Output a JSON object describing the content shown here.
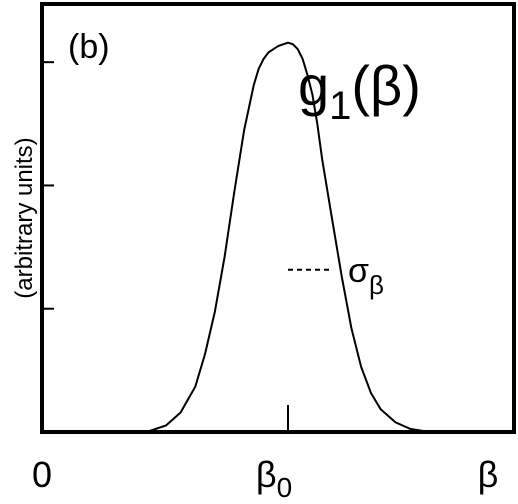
{
  "chart_data": {
    "type": "line",
    "panel_label": "(b)",
    "title": "g",
    "title_subscript": "1",
    "title_argument": "(β)",
    "ylabel": "(arbitrary units)",
    "xlabel": "β",
    "x_ticks": [
      {
        "label": "0",
        "x": 0
      },
      {
        "label": "β",
        "sub": "0",
        "x": 1
      }
    ],
    "xlim": [
      0,
      2
    ],
    "ylim": [
      0,
      1.27
    ],
    "y_ticks": [
      0.38,
      0.76,
      1.14
    ],
    "annotation": {
      "text": "σ",
      "sub": "β",
      "x_from": 1.0,
      "x_to": 1.18,
      "y": 0.5
    },
    "center_tick_x": 1,
    "series": [
      {
        "x": [
          0.42,
          0.5,
          0.56,
          0.62,
          0.66,
          0.7,
          0.74,
          0.78,
          0.82,
          0.86,
          0.88,
          0.9,
          0.92,
          0.94,
          0.96,
          0.98,
          1.0,
          1.02,
          1.04,
          1.06,
          1.08,
          1.1,
          1.12,
          1.14,
          1.18,
          1.22,
          1.26,
          1.3,
          1.34,
          1.38,
          1.44,
          1.5,
          1.58
        ],
        "y": [
          0.0,
          0.02,
          0.06,
          0.14,
          0.24,
          0.37,
          0.54,
          0.74,
          0.93,
          1.07,
          1.12,
          1.15,
          1.17,
          1.18,
          1.19,
          1.195,
          1.2,
          1.195,
          1.18,
          1.15,
          1.1,
          1.04,
          0.95,
          0.84,
          0.66,
          0.48,
          0.32,
          0.2,
          0.12,
          0.07,
          0.03,
          0.01,
          0.0
        ]
      }
    ]
  }
}
